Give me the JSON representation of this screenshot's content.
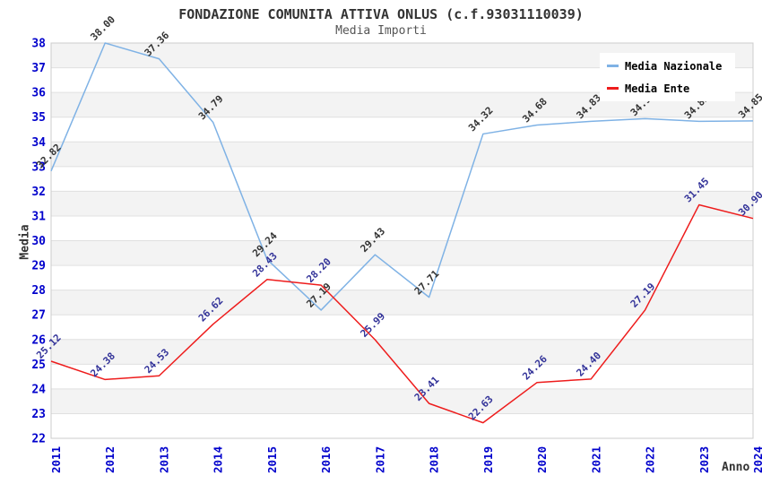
{
  "title": "FONDAZIONE COMUNITA ATTIVA ONLUS (c.f.93031110039)",
  "subtitle": "Media Importi",
  "axes": {
    "y_title": "Media",
    "x_title": "Anno"
  },
  "legend": {
    "items": [
      {
        "label": "Media Nazionale"
      },
      {
        "label": "Media Ente"
      }
    ]
  },
  "chart_data": {
    "type": "line",
    "title": "FONDAZIONE COMUNITA ATTIVA ONLUS (c.f.93031110039)",
    "subtitle": "Media Importi",
    "xlabel": "Anno",
    "ylabel": "Media",
    "categories": [
      "2011",
      "2012",
      "2013",
      "2014",
      "2015",
      "2016",
      "2017",
      "2018",
      "2019",
      "2020",
      "2021",
      "2022",
      "2023",
      "2024"
    ],
    "series": [
      {
        "name": "Media Nazionale",
        "color": "#7FB2E5",
        "label_color": "#333333",
        "values": [
          32.82,
          38.0,
          37.36,
          34.79,
          29.24,
          27.19,
          29.43,
          27.71,
          34.32,
          34.68,
          34.83,
          34.94,
          34.83,
          34.85
        ]
      },
      {
        "name": "Media Ente",
        "color": "#EE1C1C",
        "label_color": "#333399",
        "values": [
          25.12,
          24.38,
          24.53,
          26.62,
          28.43,
          28.2,
          25.99,
          23.41,
          22.63,
          24.26,
          24.4,
          27.19,
          31.45,
          30.9
        ]
      }
    ],
    "ylim": [
      22,
      38
    ],
    "y_tick_step": 1,
    "grid": true,
    "legend_position": "top-right",
    "styles": {
      "tick_label_color": "#0000CC",
      "band_color": "#F3F3F3",
      "grid_color": "#E0E0E0",
      "border_color": "#CCCCCC"
    }
  }
}
